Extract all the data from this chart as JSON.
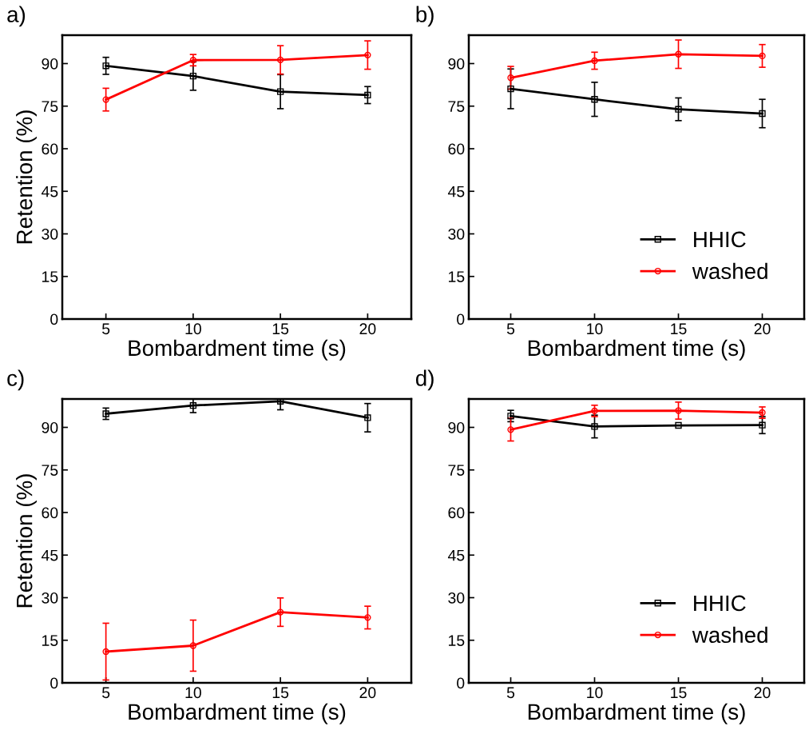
{
  "chart_data": [
    {
      "type": "line",
      "title": "a)",
      "xlabel": "Bombardment time (s)",
      "ylabel": "Retention (%)",
      "x": [
        5,
        10,
        15,
        20
      ],
      "xlim": [
        2.5,
        22.5
      ],
      "xticks": [
        5,
        10,
        15,
        20
      ],
      "ylim": [
        0,
        100
      ],
      "yticks": [
        0,
        15,
        30,
        45,
        60,
        75,
        90
      ],
      "grid": false,
      "legend": false,
      "series": [
        {
          "color": "#000000",
          "marker": "square",
          "values": [
            89.2,
            85.6,
            80.1,
            78.9
          ],
          "errors": [
            3,
            5,
            6,
            3
          ]
        },
        {
          "color": "#ff0000",
          "marker": "circle",
          "values": [
            77.3,
            91.2,
            91.3,
            93.0
          ],
          "errors": [
            4,
            2,
            5,
            5
          ]
        }
      ]
    },
    {
      "type": "line",
      "title": "b)",
      "xlabel": "Bombardment time (s)",
      "x": [
        5,
        10,
        15,
        20
      ],
      "xlim": [
        2.5,
        22.5
      ],
      "xticks": [
        5,
        10,
        15,
        20
      ],
      "ylim": [
        0,
        100
      ],
      "yticks": [
        0,
        15,
        30,
        45,
        60,
        75,
        90
      ],
      "grid": false,
      "legend": "bottom right",
      "series": [
        {
          "name": "HHIC",
          "color": "#000000",
          "marker": "square",
          "values": [
            81.1,
            77.4,
            73.9,
            72.4
          ],
          "errors": [
            7,
            6,
            4,
            5
          ]
        },
        {
          "name": "washed",
          "color": "#ff0000",
          "marker": "circle",
          "values": [
            85.0,
            91.0,
            93.3,
            92.7
          ],
          "errors": [
            4,
            3,
            5,
            4
          ]
        }
      ]
    },
    {
      "type": "line",
      "title": "c)",
      "xlabel": "Bombardment time (s)",
      "ylabel": "Retention (%)",
      "x": [
        5,
        10,
        15,
        20
      ],
      "xlim": [
        2.5,
        22.5
      ],
      "xticks": [
        5,
        10,
        15,
        20
      ],
      "ylim": [
        0,
        100
      ],
      "yticks": [
        0,
        15,
        30,
        45,
        60,
        75,
        90
      ],
      "grid": false,
      "legend": false,
      "series": [
        {
          "color": "#000000",
          "marker": "square",
          "values": [
            94.8,
            97.7,
            99.2,
            93.4
          ],
          "errors": [
            2,
            2.5,
            3,
            5
          ]
        },
        {
          "color": "#ff0000",
          "marker": "circle",
          "values": [
            11.0,
            13.1,
            24.9,
            23.0
          ],
          "errors": [
            10,
            9,
            5,
            4
          ]
        }
      ]
    },
    {
      "type": "line",
      "title": "d)",
      "xlabel": "Bombardment time (s)",
      "x": [
        5,
        10,
        15,
        20
      ],
      "xlim": [
        2.5,
        22.5
      ],
      "xticks": [
        5,
        10,
        15,
        20
      ],
      "ylim": [
        0,
        100
      ],
      "yticks": [
        0,
        15,
        30,
        45,
        60,
        75,
        90
      ],
      "grid": false,
      "legend": "bottom right",
      "series": [
        {
          "name": "HHIC",
          "color": "#000000",
          "marker": "square",
          "values": [
            94.0,
            90.3,
            90.7,
            90.8
          ],
          "errors": [
            2,
            4,
            null,
            3
          ]
        },
        {
          "name": "washed",
          "color": "#ff0000",
          "marker": "circle",
          "values": [
            89.2,
            95.8,
            95.9,
            95.2
          ],
          "errors": [
            4,
            2,
            3,
            2
          ]
        }
      ]
    }
  ]
}
